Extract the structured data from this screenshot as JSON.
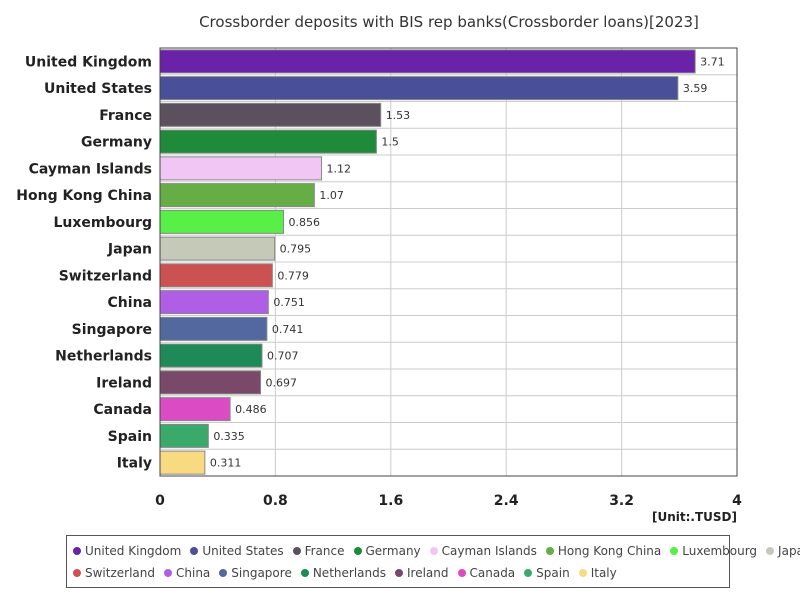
{
  "chart_data": {
    "type": "bar",
    "orientation": "horizontal",
    "title": "Crossborder deposits with BIS rep banks(Crossborder loans)[2023]",
    "unit": "[Unit:.TUSD]",
    "xlim": [
      0,
      4
    ],
    "ticks": [
      "0",
      "0.8",
      "1.6",
      "2.4",
      "3.2",
      "4"
    ],
    "grid": true,
    "legend_placement": "bottom",
    "categories": [
      "United Kingdom",
      "United States",
      "France",
      "Germany",
      "Cayman Islands",
      "Hong Kong China",
      "Luxembourg",
      "Japan",
      "Switzerland",
      "China",
      "Singapore",
      "Netherlands",
      "Ireland",
      "Canada",
      "Spain",
      "Italy"
    ],
    "values": [
      3.71,
      3.59,
      1.53,
      1.5,
      1.12,
      1.07,
      0.856,
      0.795,
      0.779,
      0.751,
      0.741,
      0.707,
      0.697,
      0.486,
      0.335,
      0.311
    ],
    "value_labels": [
      "3.71",
      "3.59",
      "1.53",
      "1.5",
      "1.12",
      "1.07",
      "0.856",
      "0.795",
      "0.779",
      "0.751",
      "0.741",
      "0.707",
      "0.697",
      "0.486",
      "0.335",
      "0.311"
    ],
    "colors": [
      "#6a22a8",
      "#4a4f9a",
      "#5c505e",
      "#1e8a3a",
      "#f2c6f4",
      "#66ad46",
      "#58f046",
      "#c4c9b8",
      "#cc5252",
      "#b05ee6",
      "#52689e",
      "#1e8a58",
      "#7a4868",
      "#db4cc4",
      "#3aaa6a",
      "#f8db80"
    ]
  }
}
